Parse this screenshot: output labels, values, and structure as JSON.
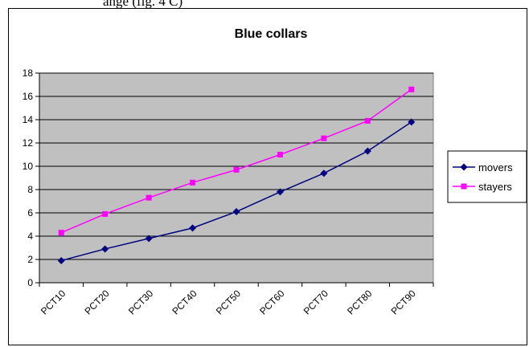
{
  "top_caption": "ange   (fig. 4 C)",
  "chart_data": {
    "type": "line",
    "title": "Blue collars",
    "xlabel": "",
    "ylabel": "",
    "categories": [
      "PCT10",
      "PCT20",
      "PCT30",
      "PCT40",
      "PCT50",
      "PCT60",
      "PCT70",
      "PCT80",
      "PCT90"
    ],
    "ylim": [
      0,
      18
    ],
    "ytick_step": 2,
    "grid": true,
    "legend_position": "right",
    "plot_background": "#c0c0c0",
    "series": [
      {
        "name": "movers",
        "color": "#000080",
        "marker": "diamond",
        "values": [
          1.9,
          2.9,
          3.8,
          4.7,
          6.1,
          7.8,
          9.4,
          11.3,
          13.8
        ]
      },
      {
        "name": "stayers",
        "color": "#ff00ff",
        "marker": "square",
        "values": [
          4.3,
          5.9,
          7.3,
          8.6,
          9.7,
          11.0,
          12.4,
          13.9,
          16.6
        ]
      }
    ]
  }
}
